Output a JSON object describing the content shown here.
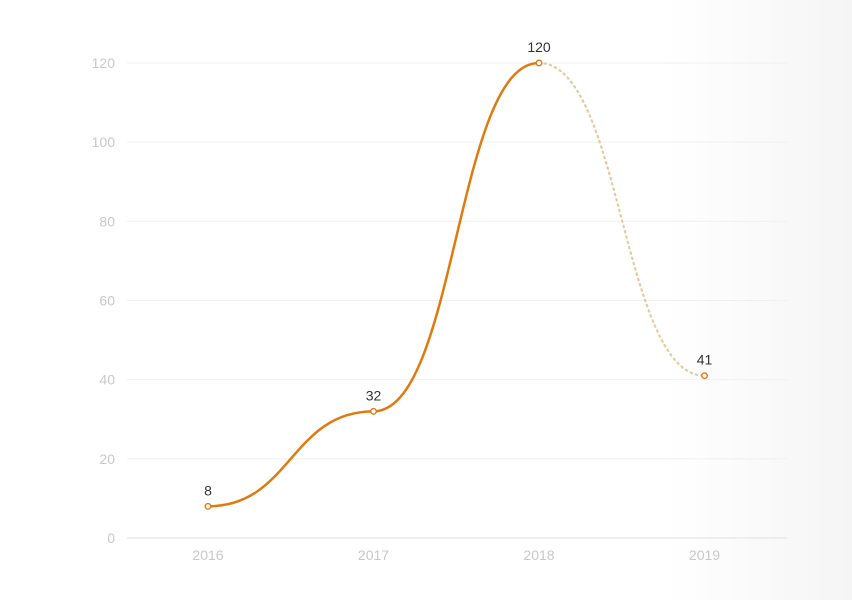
{
  "chart_data": {
    "type": "line",
    "categories": [
      "2016",
      "2017",
      "2018",
      "2019"
    ],
    "series": [
      {
        "values": [
          8,
          32,
          120,
          41
        ],
        "color": "#e07a10",
        "style_note": "segment from 2018 to 2019 drawn as a light dotted line"
      }
    ],
    "data_labels": [
      "8",
      "32",
      "120",
      "41"
    ],
    "ylim": [
      0,
      120
    ],
    "yticks": [
      0,
      20,
      40,
      60,
      80,
      100,
      120
    ],
    "ytick_labels": [
      "0",
      "20",
      "40",
      "60",
      "80",
      "100",
      "120"
    ],
    "xtick_labels": [
      "2016",
      "2017",
      "2018",
      "2019"
    ],
    "title": "",
    "xlabel": "",
    "ylabel": "",
    "grid": true,
    "legend": "none",
    "colors": {
      "line": "#e07a10",
      "dotted_segment": "#e8c9a0",
      "tick_text": "#c8c8c8",
      "label_text": "#333333",
      "grid": "#f0f0f0"
    }
  }
}
